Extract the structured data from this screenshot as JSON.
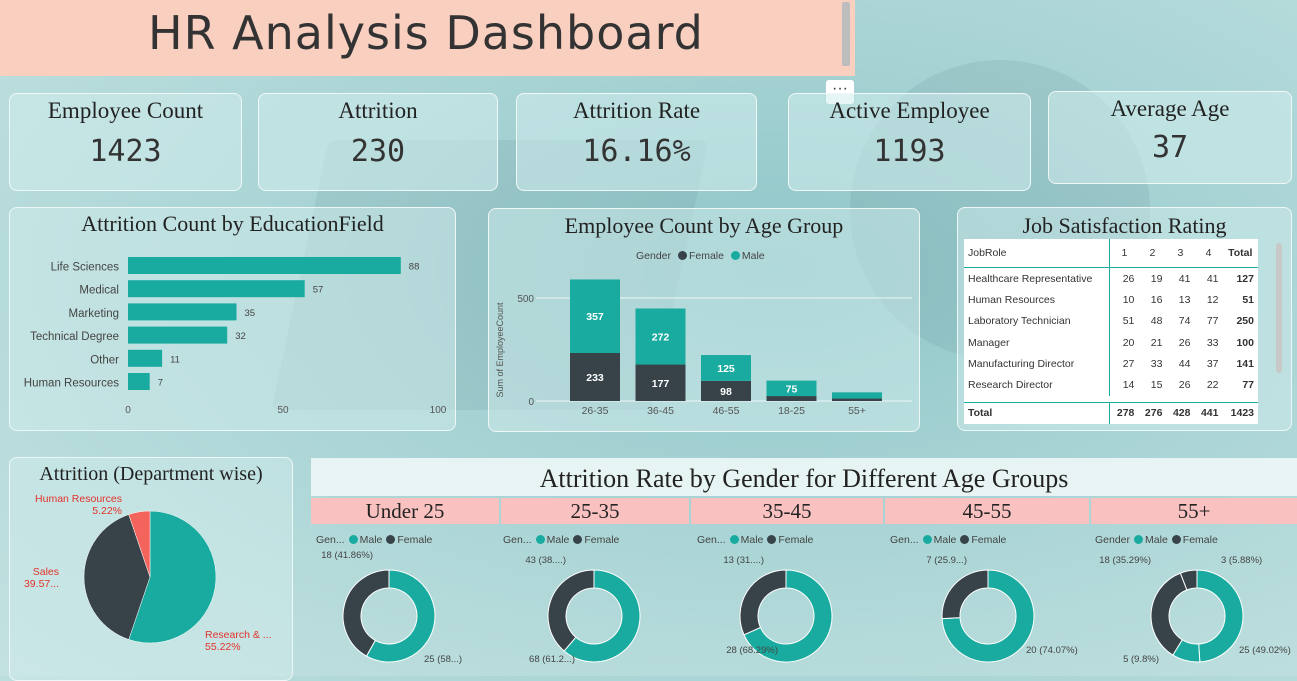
{
  "title": "HR Analysis Dashboard",
  "colors": {
    "teal": "#1aaba0",
    "dark": "#374349",
    "red": "#f2645c"
  },
  "kpis": [
    {
      "label": "Employee Count",
      "value": "1423"
    },
    {
      "label": "Attrition",
      "value": "230"
    },
    {
      "label": "Attrition Rate",
      "value": "16.16%"
    },
    {
      "label": "Active Employee",
      "value": "1193"
    },
    {
      "label": "Average Age",
      "value": "37"
    }
  ],
  "chart_data": [
    {
      "type": "bar",
      "orientation": "horizontal",
      "title": "Attrition Count by EducationField",
      "categories": [
        "Life Sciences",
        "Medical",
        "Marketing",
        "Technical Degree",
        "Other",
        "Human Resources"
      ],
      "values": [
        88,
        57,
        35,
        32,
        11,
        7
      ],
      "xticks": [
        0,
        50,
        100
      ],
      "xlim": [
        0,
        100
      ]
    },
    {
      "type": "bar",
      "stacked": true,
      "title": "Employee Count by Age Group",
      "legend_title": "Gender",
      "ylabel": "Sum of EmployeeCount",
      "categories": [
        "26-35",
        "36-45",
        "46-55",
        "18-25",
        "55+"
      ],
      "series": [
        {
          "name": "Female",
          "values": [
            233,
            177,
            98,
            24,
            12
          ]
        },
        {
          "name": "Male",
          "values": [
            357,
            272,
            125,
            75,
            30
          ]
        }
      ],
      "data_labels": {
        "Female": [
          "233",
          "177",
          "98",
          "",
          ""
        ],
        "Male": [
          "357",
          "272",
          "125",
          "75",
          ""
        ]
      },
      "yticks": [
        0,
        500
      ],
      "ylim": [
        0,
        650
      ]
    },
    {
      "type": "table",
      "title": "Job Satisfaction Rating",
      "columns": [
        "JobRole",
        "1",
        "2",
        "3",
        "4",
        "Total"
      ],
      "rows": [
        [
          "Healthcare Representative",
          "26",
          "19",
          "41",
          "41",
          "127"
        ],
        [
          "Human Resources",
          "10",
          "16",
          "13",
          "12",
          "51"
        ],
        [
          "Laboratory Technician",
          "51",
          "48",
          "74",
          "77",
          "250"
        ],
        [
          "Manager",
          "20",
          "21",
          "26",
          "33",
          "100"
        ],
        [
          "Manufacturing Director",
          "27",
          "33",
          "44",
          "37",
          "141"
        ],
        [
          "Research Director",
          "14",
          "15",
          "26",
          "22",
          "77"
        ]
      ],
      "total_row": [
        "Total",
        "278",
        "276",
        "428",
        "441",
        "1423"
      ]
    },
    {
      "type": "pie",
      "title": "Attrition (Department wise)",
      "slices": [
        {
          "label": "Research & ...",
          "percent": "55.22%",
          "value": 55.22
        },
        {
          "label": "Sales",
          "percent": "39.57...",
          "value": 39.57
        },
        {
          "label": "Human Resources",
          "percent": "5.22%",
          "value": 5.22
        }
      ]
    },
    {
      "type": "pie",
      "subtype": "donut-group",
      "title": "Attrition Rate by Gender for Different Age Groups",
      "groups": [
        {
          "header": "Under 25",
          "legend_title": "Gen...",
          "slices": [
            {
              "series": "Male",
              "value": 25,
              "label": "25 (58...)"
            },
            {
              "series": "Female",
              "value": 18,
              "label": "18 (41.86%)"
            }
          ]
        },
        {
          "header": "25-35",
          "legend_title": "Gen...",
          "slices": [
            {
              "series": "Male",
              "value": 68,
              "label": "68 (61.2...)"
            },
            {
              "series": "Female",
              "value": 43,
              "label": "43 (38....)"
            }
          ]
        },
        {
          "header": "35-45",
          "legend_title": "Gen...",
          "slices": [
            {
              "series": "Male",
              "value": 28,
              "label": "28 (68.29%)"
            },
            {
              "series": "Female",
              "value": 13,
              "label": "13 (31....)"
            }
          ]
        },
        {
          "header": "45-55",
          "legend_title": "Gen...",
          "slices": [
            {
              "series": "Male",
              "value": 20,
              "label": "20 (74.07%)"
            },
            {
              "series": "Female",
              "value": 7,
              "label": "7 (25.9...)"
            }
          ]
        },
        {
          "header": "55+",
          "legend_title": "Gender",
          "slices": [
            {
              "series": "Male",
              "value": 25,
              "label": "25 (49.02%)"
            },
            {
              "series": "Male",
              "value": 5,
              "label": "5 (9.8%)"
            },
            {
              "series": "Female",
              "value": 18,
              "label": "18 (35.29%)"
            },
            {
              "series": "Female",
              "value": 3,
              "label": "3 (5.88%)"
            }
          ]
        }
      ],
      "legend": [
        "Male",
        "Female"
      ]
    }
  ]
}
